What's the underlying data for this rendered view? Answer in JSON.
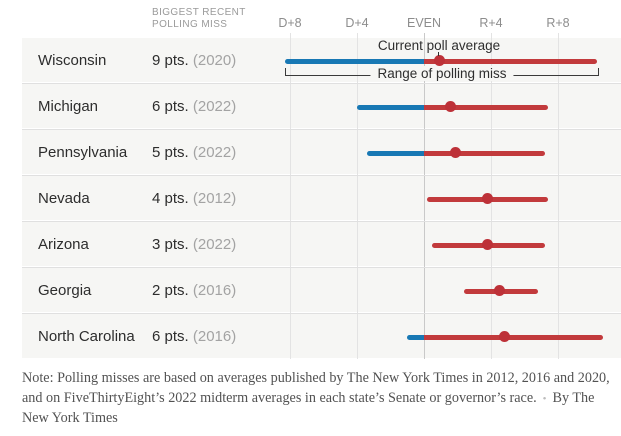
{
  "column_header": "Biggest recent polling miss",
  "annotations": {
    "current_poll_average": "Current poll average",
    "range_of_polling_miss": "Range of polling miss"
  },
  "chart_data": {
    "type": "dot-range",
    "title": "",
    "description": "Range of polling miss versus current poll average by state; values in percentage points of margin (negative = Democratic lead, positive = Republican lead)",
    "axis_ticks": [
      {
        "label": "D+8",
        "value": -8
      },
      {
        "label": "D+4",
        "value": -4
      },
      {
        "label": "EVEN",
        "value": 0
      },
      {
        "label": "R+4",
        "value": 4
      },
      {
        "label": "R+8",
        "value": 8
      }
    ],
    "x_axis_span_points": {
      "min": -9,
      "max": 11
    },
    "grid": true,
    "rows": [
      {
        "state": "Wisconsin",
        "miss_pts": 9,
        "miss_label": "9 pts.",
        "year_label": "(2020)",
        "range": [
          -8.3,
          10.3
        ],
        "poll_avg": 0.9
      },
      {
        "state": "Michigan",
        "miss_pts": 6,
        "miss_label": "6 pts.",
        "year_label": "(2022)",
        "range": [
          -4.0,
          7.4
        ],
        "poll_avg": 1.6
      },
      {
        "state": "Pennsylvania",
        "miss_pts": 5,
        "miss_label": "5 pts.",
        "year_label": "(2022)",
        "range": [
          -3.4,
          7.2
        ],
        "poll_avg": 1.9
      },
      {
        "state": "Nevada",
        "miss_pts": 4,
        "miss_label": "4 pts.",
        "year_label": "(2012)",
        "range": [
          0.2,
          7.4
        ],
        "poll_avg": 3.8
      },
      {
        "state": "Arizona",
        "miss_pts": 3,
        "miss_label": "3 pts.",
        "year_label": "(2022)",
        "range": [
          0.5,
          7.2
        ],
        "poll_avg": 3.8
      },
      {
        "state": "Georgia",
        "miss_pts": 2,
        "miss_label": "2 pts.",
        "year_label": "(2016)",
        "range": [
          2.4,
          6.8
        ],
        "poll_avg": 4.5
      },
      {
        "state": "North Carolina",
        "miss_pts": 6,
        "miss_label": "6 pts.",
        "year_label": "(2016)",
        "range": [
          -1.0,
          10.7
        ],
        "poll_avg": 4.8
      }
    ]
  },
  "note": {
    "text": "Note: Polling misses are based on averages published by The New York Times in 2012, 2016 and 2020, and on FiveThirtyEight’s 2022 midterm averages in each state’s Senate or governor’s race.",
    "separator": "•",
    "byline": "By The New York Times"
  },
  "colors": {
    "dem_blue": "#1878b4",
    "rep_red": "#c23a3c",
    "dot_red": "#bd3138",
    "row_band": "#f6f6f4",
    "gridline": "#e3e3e3",
    "gridline_even": "#c9c9c9",
    "separator": "#e0e0e0"
  }
}
